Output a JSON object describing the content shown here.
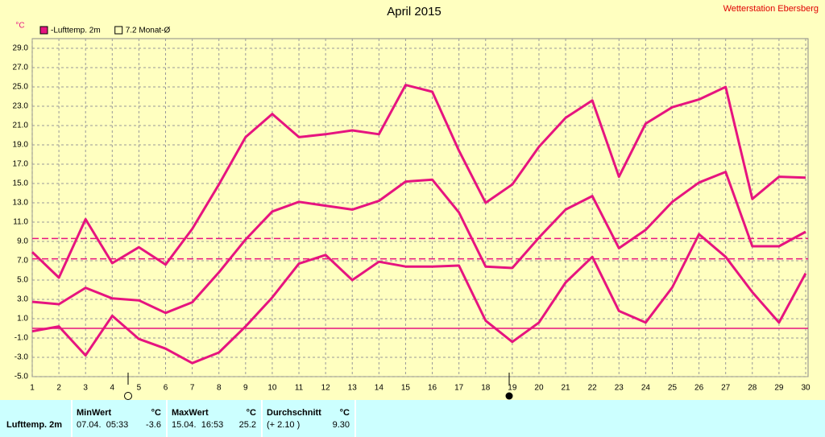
{
  "chart_data": {
    "type": "line",
    "title": "April 2015",
    "station": "Wetterstation Ebersberg",
    "y_unit": "°C",
    "x": [
      1,
      2,
      3,
      4,
      5,
      6,
      7,
      8,
      9,
      10,
      11,
      12,
      13,
      14,
      15,
      16,
      17,
      18,
      19,
      20,
      21,
      22,
      23,
      24,
      25,
      26,
      27,
      28,
      29,
      30
    ],
    "xlim": [
      1,
      30
    ],
    "xticks": [
      1,
      2,
      3,
      4,
      5,
      6,
      7,
      8,
      9,
      10,
      11,
      12,
      13,
      14,
      15,
      16,
      17,
      18,
      19,
      20,
      21,
      22,
      23,
      24,
      25,
      26,
      27,
      28,
      29,
      30
    ],
    "ylim": [
      -5,
      30
    ],
    "yticks": [
      {
        "value": -5,
        "label": "-5.0"
      },
      {
        "value": -3,
        "label": "-3.0"
      },
      {
        "value": -1,
        "label": "-1.0"
      },
      {
        "value": 1,
        "label": "1.0"
      },
      {
        "value": 3,
        "label": "3.0"
      },
      {
        "value": 5,
        "label": "5.0"
      },
      {
        "value": 7,
        "label": "7.0"
      },
      {
        "value": 9,
        "label": "9.0"
      },
      {
        "value": 11,
        "label": "11.0"
      },
      {
        "value": 13,
        "label": "13.0"
      },
      {
        "value": 15,
        "label": "15.0"
      },
      {
        "value": 17,
        "label": "17.0"
      },
      {
        "value": 19,
        "label": "19.0"
      },
      {
        "value": 21,
        "label": "21.0"
      },
      {
        "value": 23,
        "label": "23.0"
      },
      {
        "value": 25,
        "label": "25.0"
      },
      {
        "value": 27,
        "label": "27.0"
      },
      {
        "value": 29,
        "label": "29.0"
      }
    ],
    "grid": true,
    "series": [
      {
        "name": "-Lufttemp. 2m",
        "color": "#e6147f",
        "values": [
          2.75,
          2.5,
          4.2,
          3.1,
          2.9,
          1.6,
          2.7,
          5.8,
          9.2,
          12.1,
          13.1,
          12.7,
          12.3,
          13.2,
          15.2,
          15.4,
          12.0,
          6.4,
          6.25,
          9.4,
          12.3,
          13.7,
          8.3,
          10.2,
          13.1,
          15.1,
          16.2,
          8.5,
          8.5,
          10.0
        ]
      },
      {
        "color": "#e6147f",
        "values": [
          7.9,
          5.25,
          11.3,
          6.75,
          8.4,
          6.6,
          10.3,
          14.9,
          19.8,
          22.2,
          19.8,
          20.1,
          20.5,
          20.1,
          25.2,
          24.5,
          18.4,
          13.0,
          14.9,
          18.8,
          21.8,
          23.6,
          15.7,
          21.2,
          22.9,
          23.7,
          25.0,
          13.4,
          15.7,
          15.6
        ]
      },
      {
        "color": "#e6147f",
        "values": [
          -0.3,
          0.2,
          -2.8,
          1.3,
          -1.1,
          -2.1,
          -3.6,
          -2.5,
          0.2,
          3.2,
          6.7,
          7.6,
          5.0,
          6.9,
          6.4,
          6.4,
          6.5,
          0.8,
          -1.4,
          0.6,
          4.75,
          7.4,
          1.8,
          0.6,
          4.25,
          9.75,
          7.4,
          3.75,
          0.6,
          5.7
        ]
      }
    ],
    "reference_lines": [
      {
        "value": 9.3,
        "style": "dashed",
        "color": "#e6147f"
      },
      {
        "value": 7.2,
        "style": "dashed",
        "color": "#e6147f",
        "label": "7.2 Monat-Ø"
      },
      {
        "value": 0,
        "style": "solid",
        "color": "#e6147f"
      }
    ]
  },
  "table": {
    "row_label": "Lufttemp. 2m",
    "columns": [
      {
        "header": "MinWert",
        "unit": "°C",
        "detail": "07.04.  05:33",
        "value": "-3.6"
      },
      {
        "header": "MaxWert",
        "unit": "°C",
        "detail": "15.04.  16:53",
        "value": "25.2"
      },
      {
        "header": "Durchschnitt",
        "unit": "°C",
        "detail": "(+ 2.10 )",
        "value": "9.30"
      }
    ]
  }
}
